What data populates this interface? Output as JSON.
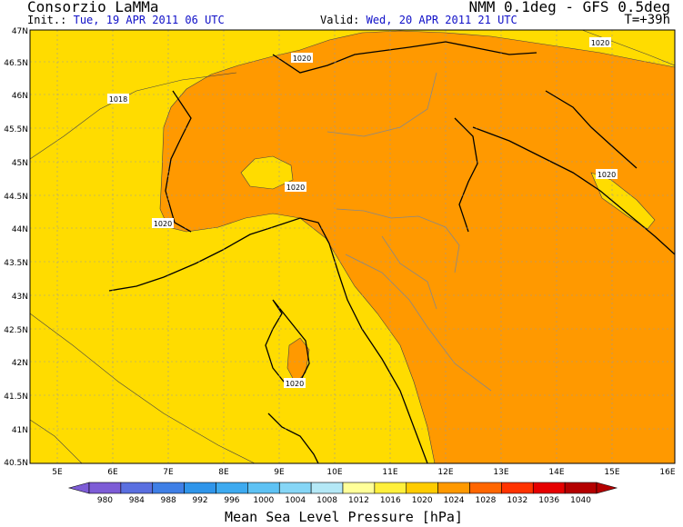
{
  "header": {
    "organization": "Consorzio LaMMa",
    "model": "NMM 0.1deg - GFS 0.5deg",
    "init_label": "Init.:",
    "init_value": "Tue, 19 APR 2011  06 UTC",
    "valid_label": "Valid:",
    "valid_value": "Wed, 20 APR 2011  21 UTC",
    "forecast_step": "T=+39h"
  },
  "axes": {
    "lat_labels": [
      "47N",
      "46.5N",
      "46N",
      "45.5N",
      "45N",
      "44.5N",
      "44N",
      "43.5N",
      "43N",
      "42.5N",
      "42N",
      "41.5N",
      "41N",
      "40.5N"
    ],
    "lon_labels": [
      "5E",
      "6E",
      "7E",
      "8E",
      "9E",
      "10E",
      "11E",
      "12E",
      "13E",
      "14E",
      "15E",
      "16E"
    ]
  },
  "isobar_labels": [
    "1020",
    "1018",
    "1020",
    "1020",
    "1020",
    "1020",
    "1020"
  ],
  "colorbar": {
    "title": "Mean Sea Level Pressure [hPa]",
    "ticks": [
      "980",
      "984",
      "988",
      "992",
      "996",
      "1000",
      "1004",
      "1008",
      "1012",
      "1016",
      "1020",
      "1024",
      "1028",
      "1032",
      "1036",
      "1040"
    ],
    "colors": [
      "#7d5cd6",
      "#5a6fe0",
      "#3f7fe6",
      "#2f95ea",
      "#3daaf0",
      "#5ec2f4",
      "#86d6f6",
      "#b4e8f6",
      "#ffff99",
      "#fff03c",
      "#ffcc00",
      "#ff9900",
      "#ff6600",
      "#ff3300",
      "#e60000",
      "#b40000"
    ]
  },
  "field_colors": {
    "p1016": "#ffdc00",
    "p1020": "#ff9900",
    "p1024": "#ffe000"
  }
}
